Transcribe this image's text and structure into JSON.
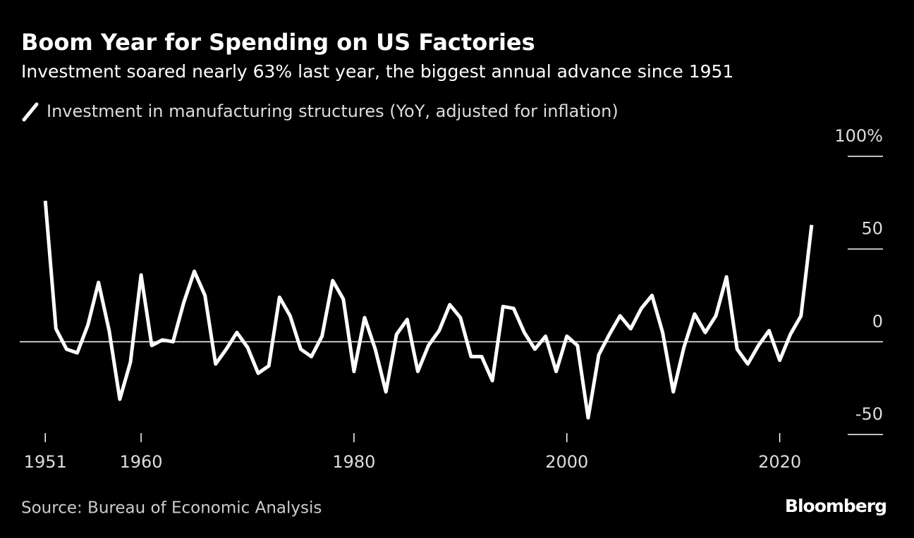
{
  "chart_data": {
    "type": "line",
    "title": "Boom Year for Spending on US Factories",
    "subtitle": "Investment soared nearly 63% last year, the biggest annual advance since 1951",
    "source": "Source: Bureau of Economic Analysis",
    "brand": "Bloomberg",
    "x": [
      1951,
      1952,
      1953,
      1954,
      1955,
      1956,
      1957,
      1958,
      1959,
      1960,
      1961,
      1962,
      1963,
      1964,
      1965,
      1966,
      1967,
      1968,
      1969,
      1970,
      1971,
      1972,
      1973,
      1974,
      1975,
      1976,
      1977,
      1978,
      1979,
      1980,
      1981,
      1982,
      1983,
      1984,
      1985,
      1986,
      1987,
      1988,
      1989,
      1990,
      1991,
      1992,
      1993,
      1994,
      1995,
      1996,
      1997,
      1998,
      1999,
      2000,
      2001,
      2002,
      2003,
      2004,
      2005,
      2006,
      2007,
      2008,
      2009,
      2010,
      2011,
      2012,
      2013,
      2014,
      2015,
      2016,
      2017,
      2018,
      2019,
      2020,
      2021,
      2022,
      2023
    ],
    "series": [
      {
        "name": "Investment in manufacturing structures (YoY, adjusted for inflation)",
        "color": "#ffffff",
        "values": [
          76,
          7,
          -4,
          -6,
          9,
          32,
          6,
          -31,
          -11,
          36,
          -2,
          1,
          0,
          21,
          38,
          25,
          -12,
          -4,
          5,
          -3,
          -17,
          -13,
          24,
          14,
          -4,
          -8,
          3,
          33,
          23,
          -16,
          13,
          -4,
          -27,
          4,
          12,
          -16,
          -2,
          6,
          20,
          13,
          -8,
          -8,
          -21,
          19,
          18,
          5,
          -4,
          3,
          -16,
          3,
          -2,
          -41,
          -7,
          4,
          14,
          7,
          18,
          25,
          5,
          -27,
          -3,
          15,
          5,
          14,
          35,
          -4,
          -12,
          -2,
          6,
          -10,
          4,
          14,
          63
        ]
      }
    ],
    "xlim": [
      1948.6,
      2029.7
    ],
    "xticks": [
      1951,
      1960,
      1980,
      2000,
      2020
    ],
    "ylim": [
      -50,
      100
    ],
    "yticks": [
      -50,
      0,
      50,
      {
        "value": 100,
        "label": "100%"
      }
    ]
  }
}
